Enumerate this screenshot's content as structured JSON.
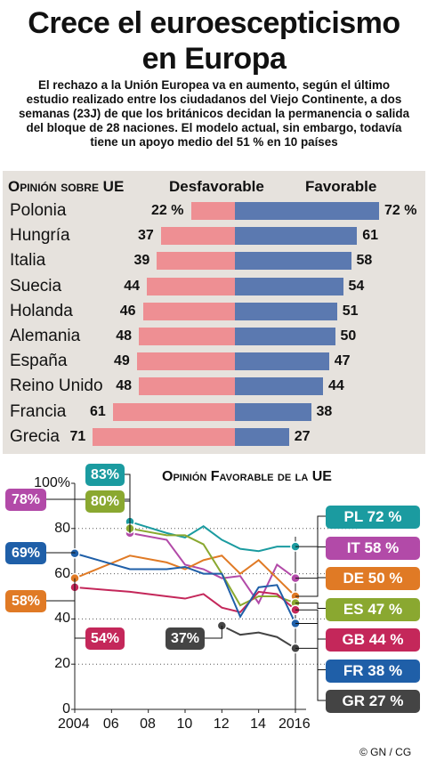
{
  "title_line1": "Crece el euroescepticismo",
  "title_line2": "en Europa",
  "subtitle_lines": [
    "El rechazo a la Unión Europea va en aumento, según el último",
    "estudio realizado entre los ciudadanos del Viejo Continente, a dos",
    "semanas (23J) de que los británicos decidan la permanencia o salida",
    "del bloque de 28 naciones. El modelo actual, sin embargo, todavía",
    "tiene un apoyo medio del 51 % en 10 países"
  ],
  "credit": "© GN / CG",
  "chart_data": [
    {
      "type": "bar",
      "title": "Opinión sobre UE",
      "series": [
        {
          "name": "Desfavorable",
          "values": [
            22,
            37,
            39,
            44,
            46,
            48,
            49,
            48,
            61,
            71
          ]
        },
        {
          "name": "Favorable",
          "values": [
            72,
            61,
            58,
            54,
            51,
            50,
            47,
            44,
            38,
            27
          ]
        }
      ],
      "categories": [
        "Polonia",
        "Hungría",
        "Italia",
        "Suecia",
        "Holanda",
        "Alemania",
        "España",
        "Reino Unido",
        "Francia",
        "Grecia"
      ],
      "value_labels": {
        "Desfavorable": [
          "22 %",
          "37",
          "39",
          "44",
          "46",
          "48",
          "49",
          "48",
          "61",
          "71"
        ],
        "Favorable": [
          "72 %",
          "61",
          "58",
          "54",
          "51",
          "50",
          "47",
          "44",
          "38",
          "27"
        ]
      },
      "colors": {
        "Desfavorable": "#ee8f93",
        "Favorable": "#5b79b0"
      }
    },
    {
      "type": "line",
      "title": "Opinión Favorable de la UE",
      "xlim": [
        2004,
        2016
      ],
      "ylim": [
        0,
        100
      ],
      "x_ticks": [
        "2004",
        "06",
        "08",
        "10",
        "12",
        "14",
        "2016"
      ],
      "y_ticks": [
        "0",
        "20",
        "40",
        "60",
        "80",
        "100%"
      ],
      "series": [
        {
          "name": "PL",
          "color": "#1b9ba0",
          "x": [
            2007,
            2009,
            2010,
            2011,
            2012,
            2013,
            2014,
            2015,
            2016
          ],
          "y": [
            83,
            78,
            76,
            81,
            75,
            71,
            70,
            72,
            72
          ]
        },
        {
          "name": "IT",
          "color": "#b24aa8",
          "x": [
            2007,
            2009,
            2010,
            2011,
            2012,
            2013,
            2014,
            2015,
            2016
          ],
          "y": [
            78,
            75,
            64,
            62,
            58,
            59,
            47,
            64,
            58
          ]
        },
        {
          "name": "DE",
          "color": "#e07a25",
          "x": [
            2004,
            2007,
            2009,
            2010,
            2011,
            2012,
            2013,
            2014,
            2015,
            2016
          ],
          "y": [
            58,
            68,
            65,
            62,
            66,
            68,
            60,
            66,
            58,
            50
          ]
        },
        {
          "name": "ES",
          "color": "#8aa830",
          "x": [
            2007,
            2009,
            2010,
            2011,
            2012,
            2013,
            2014,
            2015,
            2016
          ],
          "y": [
            80,
            77,
            77,
            73,
            60,
            46,
            50,
            50,
            47
          ]
        },
        {
          "name": "GB",
          "color": "#c4275a",
          "x": [
            2004,
            2007,
            2009,
            2010,
            2011,
            2012,
            2013,
            2014,
            2015,
            2016
          ],
          "y": [
            54,
            52,
            50,
            49,
            51,
            45,
            43,
            52,
            51,
            44
          ]
        },
        {
          "name": "FR",
          "color": "#1f5fa8",
          "x": [
            2004,
            2007,
            2009,
            2010,
            2011,
            2012,
            2013,
            2014,
            2015,
            2016
          ],
          "y": [
            69,
            62,
            62,
            63,
            60,
            60,
            41,
            54,
            55,
            38
          ]
        },
        {
          "name": "GR",
          "color": "#444444",
          "x": [
            2012,
            2013,
            2014,
            2015,
            2016
          ],
          "y": [
            37,
            33,
            34,
            32,
            27
          ]
        }
      ],
      "callouts_left": [
        {
          "text": "83%",
          "color": "#1b9ba0"
        },
        {
          "text": "80%",
          "color": "#8aa830"
        },
        {
          "text": "78%",
          "color": "#b24aa8"
        },
        {
          "text": "69%",
          "color": "#1f5fa8"
        },
        {
          "text": "58%",
          "color": "#e07a25"
        },
        {
          "text": "54%",
          "color": "#c4275a"
        },
        {
          "text": "37%",
          "color": "#444444"
        }
      ],
      "callouts_right": [
        {
          "text": "PL 72 %",
          "color": "#1b9ba0"
        },
        {
          "text": "IT 58 %",
          "color": "#b24aa8"
        },
        {
          "text": "DE 50 %",
          "color": "#e07a25"
        },
        {
          "text": "ES 47 %",
          "color": "#8aa830"
        },
        {
          "text": "GB 44 %",
          "color": "#c4275a"
        },
        {
          "text": "FR 38 %",
          "color": "#1f5fa8"
        },
        {
          "text": "GR 27 %",
          "color": "#444444"
        }
      ]
    }
  ]
}
